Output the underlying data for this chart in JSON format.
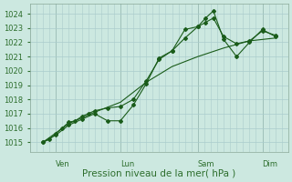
{
  "bg_color": "#cce8e0",
  "grid_color": "#aacccc",
  "line_color": "#1a5c1a",
  "tick_color": "#2d6e2d",
  "xlabel": "Pression niveau de la mer( hPa )",
  "ylim": [
    1014.3,
    1024.7
  ],
  "yticks": [
    1015,
    1016,
    1017,
    1018,
    1019,
    1020,
    1021,
    1022,
    1023,
    1024
  ],
  "xlim": [
    -0.5,
    9.5
  ],
  "xtick_labels": [
    "Ven",
    "Lun",
    "Sam",
    "Dim"
  ],
  "xtick_positions": [
    0.5,
    3.0,
    6.0,
    8.5
  ],
  "vline_positions": [
    0.5,
    3.0,
    6.0,
    8.5
  ],
  "series": [
    {
      "x": [
        0.0,
        0.25,
        0.5,
        0.75,
        1.0,
        1.25,
        1.5,
        1.75,
        2.0,
        2.5,
        3.0,
        3.5,
        4.0,
        4.5,
        5.0,
        5.5,
        6.0,
        6.3,
        6.6,
        7.0,
        7.5,
        8.0,
        8.5,
        9.0
      ],
      "y": [
        1015.0,
        1015.2,
        1015.6,
        1016.0,
        1016.4,
        1016.5,
        1016.8,
        1017.0,
        1017.2,
        1017.4,
        1017.5,
        1018.0,
        1019.3,
        1020.8,
        1021.4,
        1022.3,
        1023.1,
        1023.4,
        1023.7,
        1022.4,
        1021.9,
        1022.1,
        1022.8,
        1022.5
      ],
      "style": "line_marker"
    },
    {
      "x": [
        0.0,
        0.5,
        1.0,
        1.5,
        2.0,
        2.5,
        3.0,
        3.5,
        4.0,
        4.5,
        5.0,
        5.5,
        6.0,
        6.3,
        6.6,
        7.0,
        7.5,
        8.0,
        8.5,
        9.0
      ],
      "y": [
        1015.0,
        1015.5,
        1016.2,
        1016.6,
        1017.0,
        1016.5,
        1016.5,
        1017.6,
        1019.1,
        1020.9,
        1021.4,
        1022.9,
        1023.1,
        1023.7,
        1024.2,
        1022.2,
        1021.0,
        1022.0,
        1022.9,
        1022.4
      ],
      "style": "line_marker"
    },
    {
      "x": [
        0.0,
        1.0,
        2.0,
        3.0,
        4.0,
        5.0,
        6.0,
        7.0,
        8.0,
        9.0
      ],
      "y": [
        1015.0,
        1016.3,
        1017.1,
        1017.8,
        1019.2,
        1020.3,
        1021.0,
        1021.6,
        1022.1,
        1022.3
      ],
      "style": "line_no_marker"
    }
  ],
  "xlabel_fontsize": 7.5,
  "tick_fontsize": 6.0
}
